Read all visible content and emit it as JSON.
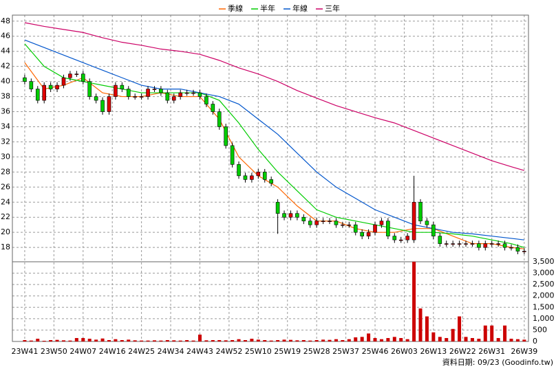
{
  "chart_data": {
    "type": "candlestick",
    "grid": true,
    "legend": "top",
    "up_color": "#dd0000",
    "down_color": "#00cc00",
    "volume_color": "#cc0000",
    "xlim": [
      -3.8,
      155.3
    ],
    "xticks": [
      {
        "value": 0,
        "label": "23W41"
      },
      {
        "value": 9,
        "label": "23W50"
      },
      {
        "value": 18,
        "label": "24W07"
      },
      {
        "value": 27,
        "label": "24W16"
      },
      {
        "value": 36,
        "label": "24W25"
      },
      {
        "value": 45,
        "label": "24W34"
      },
      {
        "value": 54,
        "label": "24W43"
      },
      {
        "value": 63,
        "label": "24W52"
      },
      {
        "value": 72,
        "label": "25W10"
      },
      {
        "value": 81,
        "label": "25W19"
      },
      {
        "value": 90,
        "label": "25W28"
      },
      {
        "value": 99,
        "label": "25W37"
      },
      {
        "value": 108,
        "label": "25W46"
      },
      {
        "value": 117,
        "label": "26W03"
      },
      {
        "value": 126,
        "label": "26W13"
      },
      {
        "value": 135,
        "label": "26W22"
      },
      {
        "value": 144,
        "label": "26W31"
      },
      {
        "value": 154,
        "label": "26W39"
      }
    ],
    "ylim": [
      16.1,
      48.8
    ],
    "yticks": [
      18,
      20,
      22,
      24,
      26,
      28,
      30,
      32,
      34,
      36,
      38,
      40,
      42,
      44,
      46,
      48
    ],
    "y2lim": [
      0,
      3500
    ],
    "y2ticks": [
      0,
      {
        "value": 500,
        "label": "500"
      },
      {
        "value": 1000,
        "label": "1,000"
      },
      {
        "value": 1500,
        "label": "1,500"
      },
      {
        "value": 2000,
        "label": "2,000"
      },
      {
        "value": 2500,
        "label": "2,500"
      },
      {
        "value": 3000,
        "label": "3,000"
      },
      {
        "value": 3500,
        "label": "3,500"
      }
    ],
    "x": [
      0,
      2,
      4,
      6,
      8,
      10,
      12,
      14,
      16,
      18,
      20,
      22,
      24,
      26,
      28,
      30,
      32,
      34,
      36,
      38,
      40,
      42,
      44,
      46,
      48,
      50,
      52,
      54,
      56,
      58,
      60,
      62,
      64,
      66,
      68,
      70,
      72,
      74,
      76,
      78,
      80,
      82,
      84,
      86,
      88,
      90,
      92,
      94,
      96,
      98,
      100,
      102,
      104,
      106,
      108,
      110,
      112,
      114,
      116,
      118,
      120,
      122,
      124,
      126,
      128,
      130,
      132,
      134,
      136,
      138,
      140,
      142,
      144,
      146,
      148,
      150,
      152,
      154
    ],
    "open": [
      40.5,
      40,
      39,
      37.5,
      39.5,
      39,
      39.5,
      40.5,
      41,
      41,
      40,
      38,
      37.5,
      36,
      38,
      39.5,
      39,
      38,
      38,
      38,
      39,
      39,
      38.5,
      37.5,
      38,
      38.5,
      38.5,
      38.5,
      38,
      37,
      36,
      34,
      31.5,
      29,
      27.5,
      27,
      27.5,
      28,
      27,
      24,
      22.5,
      22,
      22.5,
      22,
      21.5,
      21,
      21.5,
      21.5,
      21.5,
      21,
      21,
      21,
      20,
      19.5,
      20,
      21,
      21.5,
      19.5,
      19,
      19,
      19,
      24,
      21.5,
      21,
      19.5,
      18.5,
      18.5,
      18.5,
      18.5,
      18.5,
      18.5,
      18,
      18.5,
      18.5,
      18.5,
      18,
      18,
      17.5
    ],
    "high": [
      40.9,
      40.4,
      39.4,
      39.9,
      39.9,
      39.9,
      40.9,
      41.4,
      41.4,
      41.4,
      40.4,
      38.4,
      37.9,
      38.4,
      39.9,
      39.9,
      39.4,
      38.4,
      38.4,
      39.4,
      39.4,
      39.4,
      38.9,
      38.4,
      38.9,
      38.9,
      38.9,
      38.9,
      38.4,
      37.4,
      36.4,
      34.4,
      31.9,
      29.4,
      27.9,
      27.9,
      28.4,
      28.4,
      27.4,
      24.4,
      22.9,
      22.9,
      22.9,
      22.4,
      21.9,
      21.9,
      21.9,
      21.9,
      21.9,
      21.4,
      21.4,
      21.4,
      20.4,
      20.4,
      21.4,
      21.9,
      21.9,
      19.9,
      19.4,
      19.9,
      27.5,
      24.4,
      21.9,
      21.4,
      19.9,
      18.9,
      18.9,
      18.9,
      18.9,
      18.9,
      18.9,
      18.9,
      18.9,
      18.9,
      18.9,
      18.4,
      18.4,
      17.9
    ],
    "low": [
      39.6,
      38.6,
      37.1,
      37.1,
      38.6,
      38.6,
      39.1,
      40.1,
      40.6,
      39.6,
      37.6,
      37.1,
      35.6,
      35.6,
      37.6,
      38.6,
      37.6,
      37.6,
      37.6,
      37.6,
      38.6,
      38.1,
      37.1,
      37.1,
      37.6,
      38.1,
      38.1,
      37.6,
      36.6,
      35.6,
      33.6,
      31.1,
      28.6,
      27.1,
      26.6,
      26.6,
      27.1,
      26.6,
      26.1,
      19.8,
      21.6,
      21.6,
      21.6,
      21.1,
      20.6,
      20.6,
      21.1,
      21.1,
      20.6,
      20.6,
      20.6,
      19.6,
      19.1,
      19.1,
      19.6,
      20.6,
      19.1,
      18.6,
      18.6,
      18.6,
      18.6,
      21.1,
      20.6,
      19.1,
      18.1,
      18.1,
      18.1,
      18.1,
      18.1,
      18.1,
      17.6,
      17.6,
      18.1,
      18.1,
      17.6,
      17.6,
      17.1,
      17.1
    ],
    "close": [
      40,
      39,
      37.5,
      39.5,
      39,
      39.5,
      40.5,
      41,
      41,
      40,
      38,
      37.5,
      36,
      38,
      39.5,
      39,
      38,
      38,
      38,
      39,
      39,
      38.5,
      37.5,
      38,
      38.5,
      38.5,
      38.5,
      38,
      37,
      36,
      34,
      31.5,
      29,
      27.5,
      27,
      27.5,
      28,
      27,
      26.5,
      22.5,
      22,
      22.5,
      22,
      21.5,
      21,
      21.5,
      21.5,
      21.5,
      21,
      21,
      21,
      20,
      19.5,
      20,
      21,
      21.5,
      19.5,
      19,
      19,
      19.5,
      24,
      21.5,
      21,
      19.5,
      18.5,
      18.5,
      18.5,
      18.5,
      18.5,
      18.5,
      18,
      18.5,
      18.5,
      18.5,
      18,
      18,
      17.5,
      17.5
    ],
    "volume": [
      60,
      40,
      120,
      30,
      60,
      70,
      50,
      40,
      150,
      150,
      120,
      80,
      130,
      60,
      100,
      60,
      80,
      50,
      40,
      40,
      50,
      40,
      60,
      50,
      40,
      60,
      40,
      300,
      50,
      60,
      60,
      50,
      60,
      100,
      60,
      120,
      80,
      60,
      40,
      60,
      80,
      70,
      50,
      60,
      40,
      60,
      80,
      70,
      100,
      60,
      100,
      180,
      200,
      350,
      150,
      100,
      150,
      200,
      150,
      100,
      3500,
      1450,
      1100,
      400,
      200,
      150,
      550,
      1100,
      200,
      150,
      120,
      700,
      700,
      150,
      700,
      120,
      100,
      80
    ],
    "series": [
      {
        "name": "季線",
        "color": "#ff6600",
        "x": [
          0,
          6,
          12,
          18,
          24,
          30,
          36,
          42,
          48,
          54,
          60,
          66,
          72,
          78,
          84,
          90,
          96,
          102,
          108,
          114,
          120,
          126,
          132,
          138,
          144,
          150,
          154
        ],
        "values": [
          42.5,
          39,
          39.5,
          40.5,
          38.5,
          38,
          38,
          38.5,
          38,
          38,
          35,
          30,
          27.5,
          26,
          23.5,
          21.5,
          21.5,
          20.5,
          20,
          20,
          20.5,
          20.5,
          19.5,
          18.5,
          18.5,
          18,
          17.8
        ]
      },
      {
        "name": "半年",
        "color": "#00cc00",
        "x": [
          0,
          6,
          12,
          18,
          24,
          30,
          36,
          42,
          48,
          54,
          60,
          66,
          72,
          78,
          84,
          90,
          96,
          102,
          108,
          114,
          120,
          126,
          132,
          138,
          144,
          150,
          154
        ],
        "values": [
          45,
          42,
          40.5,
          40,
          39.5,
          39,
          38.5,
          38.5,
          38.5,
          38.5,
          37.5,
          34.5,
          31,
          28,
          25.5,
          23,
          22,
          21.5,
          21,
          20.5,
          20,
          20,
          19.8,
          19.5,
          19,
          18.5,
          18
        ]
      },
      {
        "name": "年線",
        "color": "#0055cc",
        "x": [
          0,
          6,
          12,
          18,
          24,
          30,
          36,
          42,
          48,
          54,
          60,
          66,
          72,
          78,
          84,
          90,
          96,
          102,
          108,
          114,
          120,
          126,
          132,
          138,
          144,
          150,
          154
        ],
        "values": [
          45.5,
          44.5,
          43.5,
          42.5,
          41.5,
          40.5,
          39.5,
          39,
          39,
          38.5,
          38,
          37,
          35,
          33,
          30.5,
          28,
          26,
          24.5,
          23,
          22,
          21,
          20.5,
          20,
          19.8,
          19.5,
          19.2,
          19
        ]
      },
      {
        "name": "三年",
        "color": "#cc0066",
        "x": [
          0,
          6,
          12,
          18,
          24,
          30,
          36,
          42,
          48,
          54,
          60,
          66,
          72,
          78,
          84,
          90,
          96,
          102,
          108,
          114,
          120,
          126,
          132,
          138,
          144,
          150,
          154
        ],
        "values": [
          47.8,
          47.3,
          46.9,
          46.5,
          45.8,
          45.2,
          44.8,
          44.3,
          44,
          43.6,
          42.8,
          41.8,
          41,
          40,
          38.8,
          37.8,
          36.8,
          36,
          35.2,
          34.5,
          33.5,
          32.5,
          31.5,
          30.5,
          29.5,
          28.7,
          28.2
        ]
      }
    ],
    "footer": "資料日期: 09/23 (Goodinfo.tw)"
  }
}
